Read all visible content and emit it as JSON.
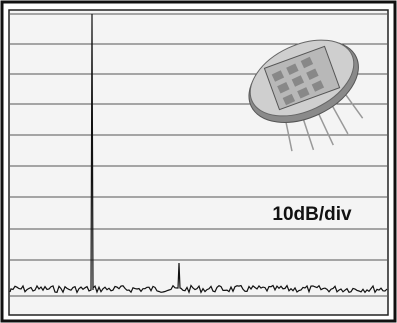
{
  "annotation": "10dB/div"
}
